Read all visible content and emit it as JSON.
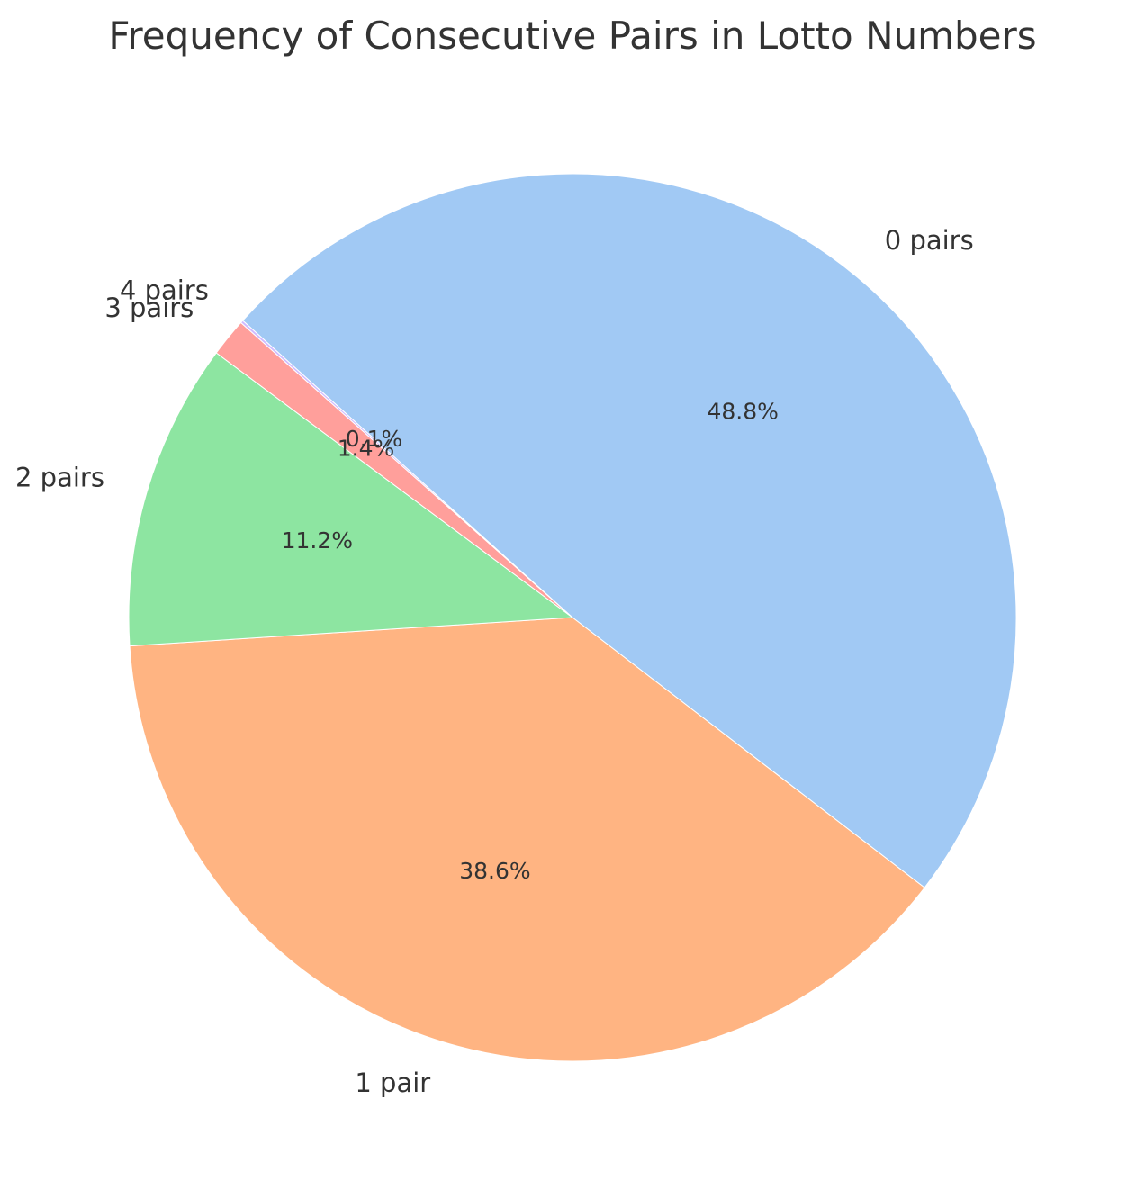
{
  "chart_data": {
    "type": "pie",
    "title": "Frequency of Consecutive Pairs in Lotto Numbers",
    "categories": [
      "0 pairs",
      "1 pair",
      "2 pairs",
      "3 pairs",
      "4 pairs"
    ],
    "values": [
      48.8,
      38.6,
      11.2,
      1.4,
      0.1
    ],
    "value_labels": [
      "48.8%",
      "38.6%",
      "11.2%",
      "1.4%",
      "0.1%"
    ],
    "colors": [
      "#a1c9f4",
      "#ffb482",
      "#8de5a1",
      "#ff9f9b",
      "#d0bbff"
    ],
    "start_angle_deg": 138,
    "direction": "clockwise",
    "legend": "none"
  }
}
